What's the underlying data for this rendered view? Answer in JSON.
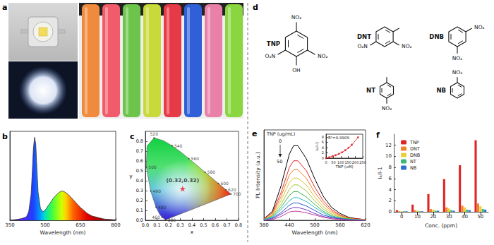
{
  "photos": {
    "panel": "a"
  },
  "structures": {
    "panel": "d",
    "molecules": [
      {
        "name": "TNP",
        "substituents": [
          {
            "at": 0,
            "label": "NO₂"
          },
          {
            "at": 2,
            "label": "NO₂"
          },
          {
            "at": 3,
            "label": "OH"
          },
          {
            "at": 4,
            "label": "O₂N"
          }
        ]
      },
      {
        "name": "DNT",
        "substituents": [
          {
            "at": 1,
            "label": null
          },
          {
            "at": 2,
            "label": "NO₂"
          },
          {
            "at": 4,
            "label": "O₂N"
          }
        ]
      },
      {
        "name": "DNB",
        "substituents": [
          {
            "at": 1,
            "label": "NO₂"
          },
          {
            "at": 3,
            "label": "NO₂"
          }
        ]
      },
      {
        "name": "NT",
        "substituents": [
          {
            "at": 0,
            "label": null
          },
          {
            "at": 3,
            "label": "NO₂"
          }
        ]
      },
      {
        "name": "NB",
        "substituents": [
          {
            "at": 0,
            "label": "NO₂"
          }
        ]
      }
    ]
  },
  "chart_data": [
    {
      "panel": "b",
      "type": "area",
      "x": [
        350,
        380,
        400,
        420,
        430,
        440,
        445,
        450,
        455,
        460,
        465,
        470,
        480,
        490,
        500,
        520,
        540,
        560,
        570,
        580,
        600,
        620,
        650,
        680,
        700,
        750,
        800
      ],
      "values": [
        0,
        0.01,
        0.02,
        0.04,
        0.1,
        0.3,
        0.55,
        0.85,
        0.98,
        0.9,
        0.6,
        0.33,
        0.14,
        0.1,
        0.12,
        0.2,
        0.28,
        0.33,
        0.345,
        0.34,
        0.3,
        0.24,
        0.15,
        0.08,
        0.05,
        0.015,
        0.005
      ],
      "xlabel": "Wavelength (nm)",
      "xlim": [
        350,
        800
      ],
      "xticks": [
        350,
        500,
        650,
        800
      ],
      "ylim": [
        0,
        1.05
      ],
      "tick_labels": "x",
      "grid": false
    },
    {
      "panel": "c",
      "type": "cie",
      "xlabel": "x",
      "ylabel": "y",
      "xlim": [
        0,
        0.8
      ],
      "xticks": [
        {
          "value": 0,
          "label": "0.0"
        },
        0.1,
        0.2,
        0.3,
        0.4,
        0.5,
        0.6,
        0.7,
        0.8
      ],
      "ylim": [
        0,
        0.9
      ],
      "yticks": [
        {
          "value": 0,
          "label": "0.0"
        },
        0.1,
        0.2,
        0.3,
        0.4,
        0.5,
        0.6,
        0.7,
        0.8
      ],
      "locus": {
        "x": [
          0.1741,
          0.144,
          0.1241,
          0.0913,
          0.0454,
          0.0082,
          0.0139,
          0.0743,
          0.1547,
          0.2296,
          0.3016,
          0.3731,
          0.4441,
          0.5125,
          0.5752,
          0.627,
          0.6915,
          0.7347
        ],
        "y": [
          0.005,
          0.0297,
          0.0578,
          0.1327,
          0.295,
          0.5384,
          0.7502,
          0.8338,
          0.8059,
          0.7543,
          0.6923,
          0.6245,
          0.5547,
          0.4866,
          0.4242,
          0.3725,
          0.3083,
          0.2653
        ],
        "labels": [
          380,
          460,
          null,
          480,
          490,
          500,
          null,
          520,
          null,
          540,
          null,
          560,
          null,
          580,
          null,
          600,
          620,
          700
        ]
      },
      "point": {
        "x": 0.32,
        "y": 0.32,
        "label": "(0.32,0.32)",
        "color": "#e0202c",
        "marker": "star"
      },
      "grid": false
    },
    {
      "panel": "e",
      "type": "line",
      "x": [
        380,
        400,
        420,
        440,
        450,
        460,
        480,
        500,
        520,
        540,
        560,
        580,
        600,
        620
      ],
      "series": [
        {
          "color": "#000000",
          "values": [
            2,
            12,
            45,
            88,
            99,
            99,
            82,
            55,
            32,
            17,
            9,
            4,
            2,
            1
          ]
        },
        {
          "color": "#e8262a",
          "values": [
            2,
            10,
            36,
            70,
            79,
            79,
            66,
            44,
            26,
            14,
            7,
            3,
            2,
            1
          ]
        },
        {
          "color": "#f07c22",
          "values": [
            1,
            8,
            31,
            60,
            67,
            67,
            56,
            37,
            22,
            12,
            6,
            3,
            1,
            1
          ]
        },
        {
          "color": "#e2c02a",
          "values": [
            1,
            7,
            26,
            50,
            56,
            56,
            47,
            31,
            18,
            10,
            5,
            2,
            1,
            1
          ]
        },
        {
          "color": "#9cc43c",
          "values": [
            1,
            6,
            21,
            41,
            47,
            47,
            39,
            26,
            15,
            8,
            4,
            2,
            1,
            0
          ]
        },
        {
          "color": "#3cb44a",
          "values": [
            1,
            5,
            17,
            33,
            38,
            38,
            31,
            21,
            12,
            6,
            3,
            2,
            1,
            0
          ]
        },
        {
          "color": "#28b8c8",
          "values": [
            1,
            4,
            14,
            26,
            30,
            30,
            25,
            17,
            10,
            5,
            3,
            1,
            1,
            0
          ]
        },
        {
          "color": "#2858d8",
          "values": [
            0,
            3,
            10,
            20,
            23,
            23,
            19,
            13,
            7,
            4,
            2,
            1,
            0,
            0
          ]
        },
        {
          "color": "#7a3cc0",
          "values": [
            0,
            2,
            8,
            15,
            17,
            17,
            14,
            9,
            5,
            3,
            2,
            1,
            0,
            0
          ]
        },
        {
          "color": "#c040a0",
          "values": [
            0,
            1,
            5,
            11,
            12,
            12,
            10,
            7,
            4,
            2,
            1,
            0,
            0,
            0
          ]
        }
      ],
      "xlabel": "Wavelength (nm)",
      "ylabel": "PL Intensity (a.u.)",
      "xlim": [
        380,
        620
      ],
      "xticks": [
        380,
        440,
        500,
        560,
        620
      ],
      "ylim": [
        0,
        120
      ],
      "tick_labels": "x",
      "grid": false,
      "annotation": {
        "title": "TNP (ug/mL)",
        "start": 0,
        "end": 50
      },
      "inset": {
        "type": "scatter",
        "x": [
          0,
          22,
          44,
          65,
          87,
          109,
          131,
          153,
          175,
          218
        ],
        "values": [
          0,
          0.3,
          0.7,
          1.1,
          1.6,
          2.2,
          3.0,
          3.9,
          5.0,
          7.8
        ],
        "fit": [
          0.05,
          0.35,
          0.72,
          1.15,
          1.62,
          2.2,
          2.95,
          3.85,
          4.95,
          7.85
        ],
        "color": "#e02020",
        "marker": "circle",
        "xlabel": "TNP (uM)",
        "ylabel": "I₀/I-1",
        "xlim": [
          0,
          250
        ],
        "xticks": [
          0,
          50,
          100,
          150,
          200,
          250
        ],
        "ylim": [
          0,
          9
        ],
        "yticks": [
          0,
          2,
          4,
          6,
          8
        ],
        "annotation": "R²=0.9909",
        "grid": false
      }
    },
    {
      "panel": "f",
      "type": "bar",
      "categories": [
        "0",
        "10",
        "20",
        "30",
        "40",
        "50"
      ],
      "series": [
        {
          "name": "TNP",
          "color": "#e02424",
          "values": [
            0.3,
            1.3,
            3.2,
            5.9,
            8.4,
            12.9
          ]
        },
        {
          "name": "DNT",
          "color": "#f0822a",
          "values": [
            0.1,
            0.3,
            0.5,
            0.8,
            1.1,
            1.5
          ]
        },
        {
          "name": "DNB",
          "color": "#e8d03a",
          "values": [
            0.1,
            0.2,
            0.4,
            0.6,
            0.8,
            1.0
          ]
        },
        {
          "name": "NT",
          "color": "#3cb878",
          "values": [
            0.1,
            0.1,
            0.2,
            0.3,
            0.4,
            0.5
          ]
        },
        {
          "name": "NB",
          "color": "#2f6fd6",
          "values": [
            0.1,
            0.1,
            0.2,
            0.2,
            0.3,
            0.4
          ]
        }
      ],
      "xlabel": "Conc. (ppm)",
      "ylabel": "I₀/I-1",
      "ylim": [
        0,
        14
      ],
      "yticks": [
        0,
        2,
        4,
        6,
        8,
        10,
        12
      ],
      "legend": "upper left",
      "grid": false
    }
  ]
}
